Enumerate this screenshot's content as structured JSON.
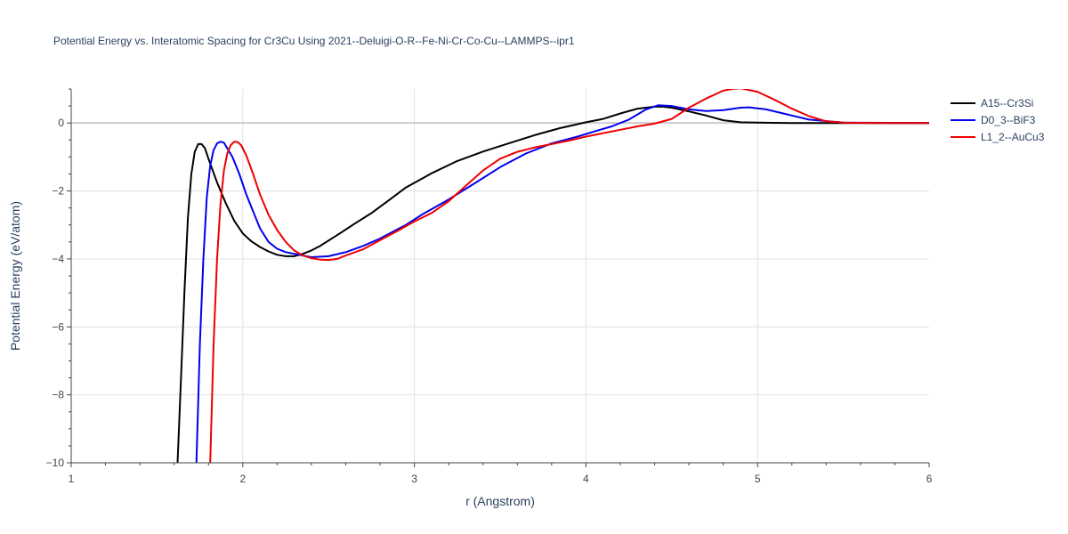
{
  "chart_data": {
    "type": "line",
    "title": "Potential Energy vs. Interatomic Spacing for Cr3Cu Using 2021--Deluigi-O-R--Fe-Ni-Cr-Co-Cu--LAMMPS--ipr1",
    "xlabel": "r (Angstrom)",
    "ylabel": "Potential Energy (eV/atom)",
    "xlim": [
      1,
      6
    ],
    "ylim": [
      -10,
      1
    ],
    "x_ticks": [
      "1",
      "2",
      "3",
      "4",
      "5",
      "6"
    ],
    "y_ticks": [
      "0",
      "−2",
      "−4",
      "−6",
      "−8",
      "−10"
    ],
    "grid": true,
    "legend_position": "top-right",
    "series": [
      {
        "name": "A15--Cr3Si",
        "color": "#000000",
        "x": [
          1.62,
          1.64,
          1.66,
          1.68,
          1.7,
          1.72,
          1.74,
          1.76,
          1.78,
          1.8,
          1.85,
          1.9,
          1.95,
          2.0,
          2.05,
          2.1,
          2.15,
          2.2,
          2.25,
          2.3,
          2.35,
          2.4,
          2.45,
          2.55,
          2.65,
          2.75,
          2.85,
          2.95,
          3.1,
          3.25,
          3.4,
          3.55,
          3.7,
          3.85,
          4.0,
          4.1,
          4.2,
          4.3,
          4.4,
          4.45,
          4.5,
          4.6,
          4.7,
          4.8,
          4.9,
          5.0,
          5.2,
          5.5,
          6.0
        ],
        "values": [
          -10.0,
          -7.5,
          -5.0,
          -2.8,
          -1.5,
          -0.85,
          -0.62,
          -0.62,
          -0.75,
          -1.05,
          -1.75,
          -2.35,
          -2.88,
          -3.25,
          -3.48,
          -3.65,
          -3.78,
          -3.88,
          -3.92,
          -3.92,
          -3.85,
          -3.75,
          -3.62,
          -3.3,
          -2.97,
          -2.65,
          -2.28,
          -1.9,
          -1.48,
          -1.12,
          -0.84,
          -0.6,
          -0.36,
          -0.15,
          0.02,
          0.12,
          0.28,
          0.42,
          0.48,
          0.48,
          0.45,
          0.34,
          0.22,
          0.08,
          0.02,
          0.01,
          0.0,
          0.0,
          0.0
        ]
      },
      {
        "name": "D0_3--BiF3",
        "color": "#0000ee",
        "x": [
          1.73,
          1.75,
          1.77,
          1.79,
          1.81,
          1.83,
          1.85,
          1.87,
          1.89,
          1.91,
          1.94,
          1.98,
          2.02,
          2.06,
          2.1,
          2.15,
          2.2,
          2.25,
          2.3,
          2.35,
          2.4,
          2.5,
          2.6,
          2.7,
          2.8,
          2.95,
          3.05,
          3.2,
          3.35,
          3.5,
          3.65,
          3.8,
          3.95,
          4.05,
          4.15,
          4.25,
          4.35,
          4.42,
          4.5,
          4.6,
          4.7,
          4.8,
          4.9,
          4.95,
          5.05,
          5.15,
          5.3,
          5.5,
          6.0
        ],
        "values": [
          -10.0,
          -6.5,
          -4.0,
          -2.2,
          -1.25,
          -0.8,
          -0.6,
          -0.55,
          -0.58,
          -0.75,
          -1.0,
          -1.5,
          -2.1,
          -2.6,
          -3.1,
          -3.5,
          -3.7,
          -3.8,
          -3.85,
          -3.9,
          -3.95,
          -3.92,
          -3.8,
          -3.62,
          -3.4,
          -3.0,
          -2.68,
          -2.25,
          -1.78,
          -1.3,
          -0.9,
          -0.6,
          -0.4,
          -0.25,
          -0.1,
          0.1,
          0.4,
          0.52,
          0.5,
          0.4,
          0.35,
          0.38,
          0.45,
          0.46,
          0.4,
          0.28,
          0.1,
          0.01,
          0.0
        ]
      },
      {
        "name": "L1_2--AuCu3",
        "color": "#ee0000",
        "x": [
          1.81,
          1.83,
          1.85,
          1.87,
          1.89,
          1.91,
          1.93,
          1.95,
          1.97,
          1.99,
          2.02,
          2.06,
          2.1,
          2.15,
          2.2,
          2.25,
          2.3,
          2.35,
          2.4,
          2.45,
          2.5,
          2.55,
          2.6,
          2.7,
          2.8,
          2.9,
          3.0,
          3.1,
          3.2,
          3.3,
          3.4,
          3.5,
          3.6,
          3.7,
          3.8,
          3.9,
          4.0,
          4.1,
          4.2,
          4.3,
          4.4,
          4.5,
          4.6,
          4.7,
          4.8,
          4.85,
          4.9,
          5.0,
          5.1,
          5.2,
          5.3,
          5.4,
          5.5,
          5.7,
          6.0
        ],
        "values": [
          -10.0,
          -6.5,
          -4.0,
          -2.4,
          -1.4,
          -0.9,
          -0.65,
          -0.55,
          -0.56,
          -0.65,
          -0.95,
          -1.5,
          -2.1,
          -2.7,
          -3.15,
          -3.5,
          -3.75,
          -3.9,
          -3.98,
          -4.02,
          -4.03,
          -4.0,
          -3.9,
          -3.72,
          -3.45,
          -3.18,
          -2.9,
          -2.65,
          -2.3,
          -1.85,
          -1.4,
          -1.05,
          -0.85,
          -0.72,
          -0.62,
          -0.52,
          -0.4,
          -0.3,
          -0.2,
          -0.1,
          -0.02,
          0.12,
          0.45,
          0.72,
          0.95,
          1.0,
          1.02,
          0.92,
          0.68,
          0.42,
          0.2,
          0.05,
          0.01,
          0.0,
          0.0
        ]
      }
    ]
  }
}
